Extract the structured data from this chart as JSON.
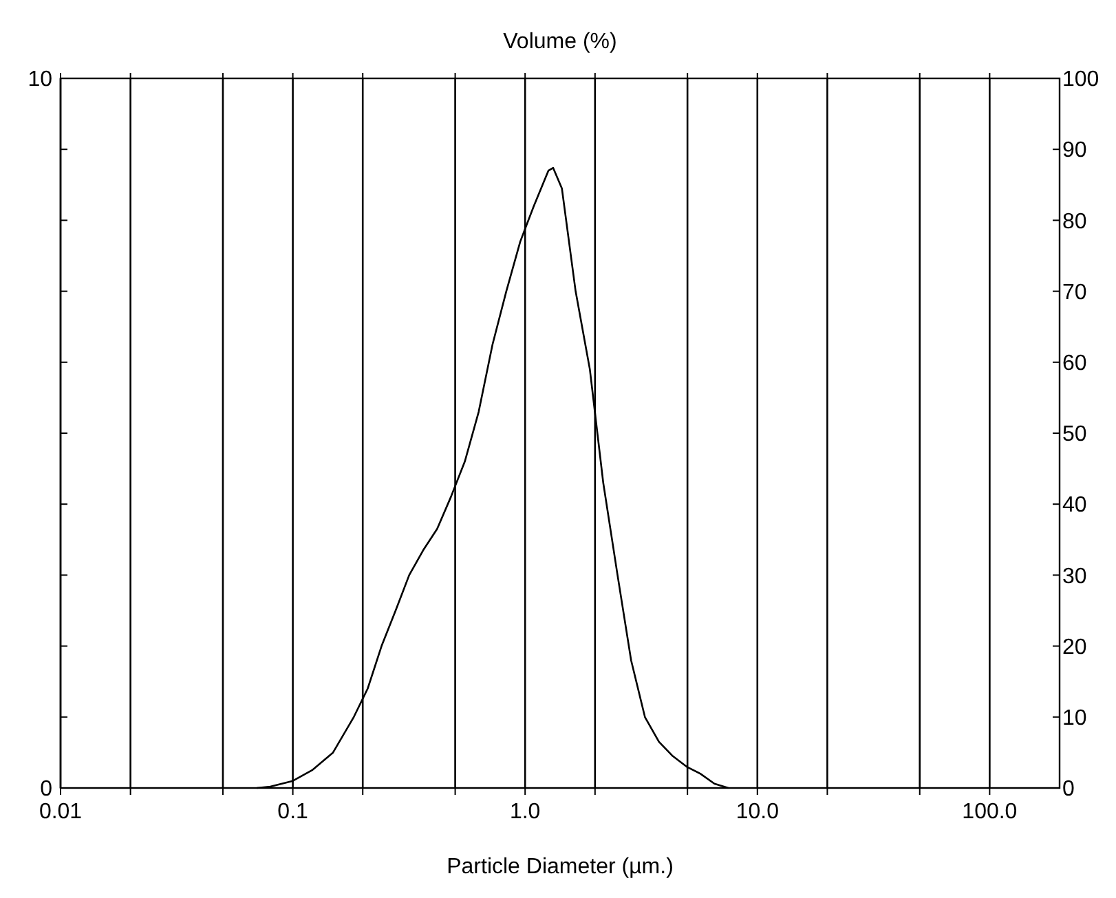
{
  "chart_data": {
    "type": "line",
    "ylabel": "Volume (%)",
    "xlabel": "Particle Diameter (µm.)",
    "log": "x",
    "xlim": [
      0.01,
      200
    ],
    "xticks": [
      {
        "value": 0.01,
        "label": "0.01"
      },
      {
        "value": 0.02,
        "label": null
      },
      {
        "value": 0.05,
        "label": null
      },
      {
        "value": 0.1,
        "label": "0.1"
      },
      {
        "value": 0.2,
        "label": null
      },
      {
        "value": 0.5,
        "label": null
      },
      {
        "value": 1,
        "label": "1.0"
      },
      {
        "value": 2,
        "label": null
      },
      {
        "value": 5,
        "label": null
      },
      {
        "value": 10,
        "label": "10.0"
      },
      {
        "value": 20,
        "label": null
      },
      {
        "value": 50,
        "label": null
      },
      {
        "value": 100,
        "label": "100.0"
      }
    ],
    "ylim": [
      0,
      10
    ],
    "yticks": [
      0,
      {
        "value": 1,
        "label": null
      },
      {
        "value": 2,
        "label": null
      },
      {
        "value": 3,
        "label": null
      },
      {
        "value": 4,
        "label": null
      },
      {
        "value": 5,
        "label": null
      },
      {
        "value": 6,
        "label": null
      },
      {
        "value": 7,
        "label": null
      },
      {
        "value": 8,
        "label": null
      },
      {
        "value": 9,
        "label": null
      },
      10
    ],
    "y2lim": [
      0,
      100
    ],
    "y2ticks": [
      0,
      10,
      20,
      30,
      40,
      50,
      60,
      70,
      80,
      90,
      100
    ],
    "grid": "x",
    "marker": "none",
    "line_style": "solid",
    "series": [
      {
        "color": "#000000",
        "x": [
          0.07,
          0.08,
          0.1,
          0.121,
          0.149,
          0.183,
          0.21,
          0.241,
          0.277,
          0.317,
          0.364,
          0.418,
          0.479,
          0.55,
          0.631,
          0.724,
          0.83,
          0.953,
          1.09,
          1.26,
          1.32,
          1.44,
          1.65,
          1.9,
          2.17,
          2.5,
          2.86,
          3.28,
          3.77,
          4.32,
          4.96,
          5.69,
          6.53,
          7.5
        ],
        "values": [
          0,
          0.02,
          0.1,
          0.25,
          0.5,
          1.0,
          1.4,
          2.0,
          2.5,
          3.0,
          3.35,
          3.65,
          4.1,
          4.6,
          5.3,
          6.25,
          7.0,
          7.7,
          8.2,
          8.7,
          8.74,
          8.45,
          7.0,
          5.9,
          4.3,
          3.0,
          1.8,
          1.0,
          0.65,
          0.45,
          0.3,
          0.2,
          0.06,
          0
        ]
      }
    ]
  }
}
